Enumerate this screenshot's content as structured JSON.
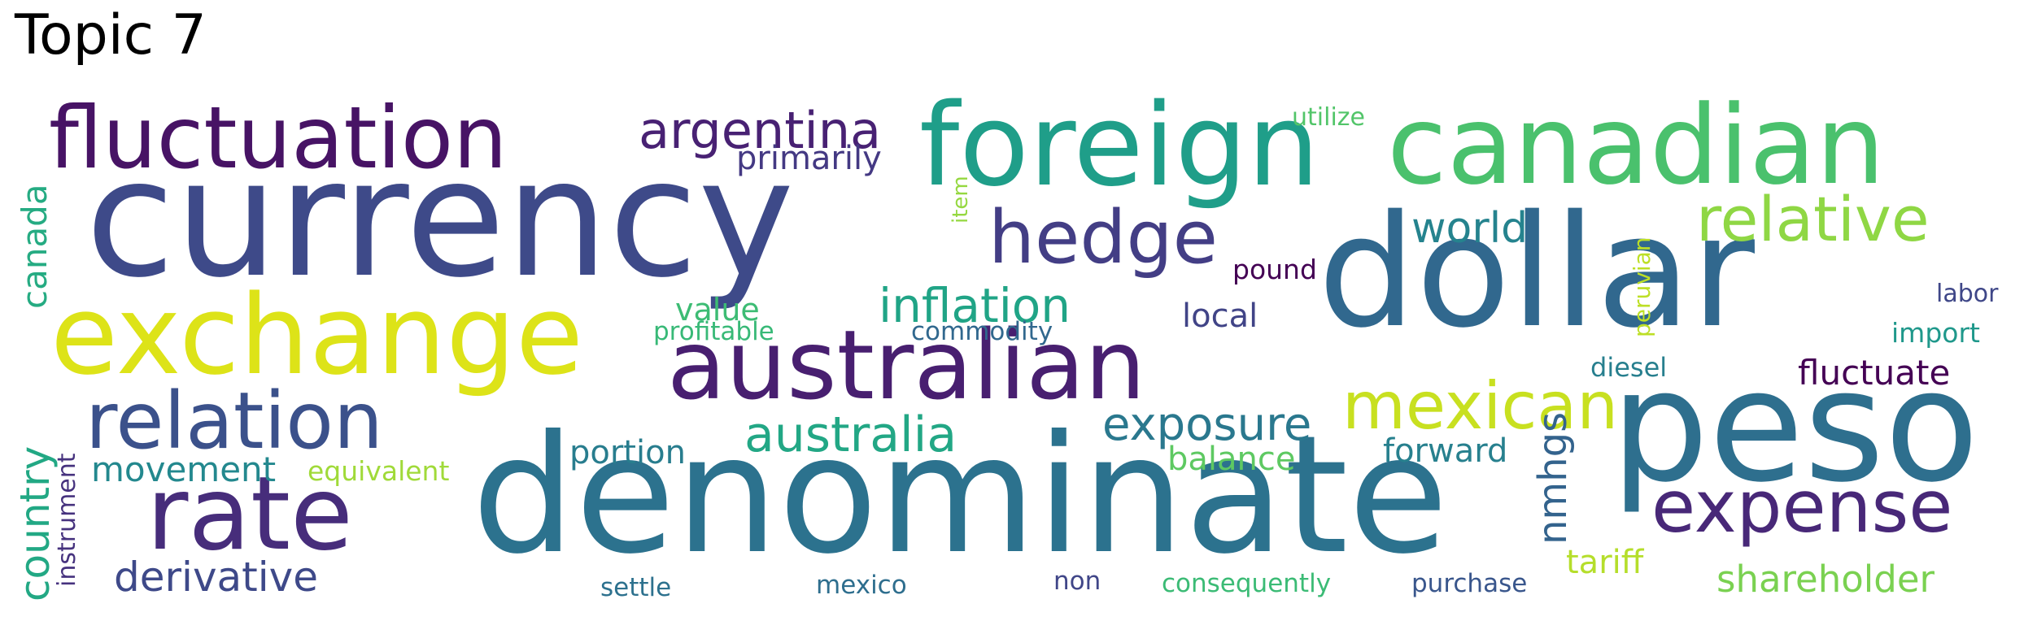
{
  "title": "Topic 7",
  "words": [
    {
      "text": "currency",
      "color": "#3e4a89"
    },
    {
      "text": "denominate",
      "color": "#2c728e"
    },
    {
      "text": "dollar",
      "color": "#31688e"
    },
    {
      "text": "peso",
      "color": "#2e6f8e"
    },
    {
      "text": "foreign",
      "color": "#1f9e89"
    },
    {
      "text": "canadian",
      "color": "#4ac16d"
    },
    {
      "text": "exchange",
      "color": "#dde318"
    },
    {
      "text": "fluctuation",
      "color": "#471365"
    },
    {
      "text": "australian",
      "color": "#481f70"
    },
    {
      "text": "rate",
      "color": "#472d7b"
    },
    {
      "text": "relation",
      "color": "#3b518b"
    },
    {
      "text": "hedge",
      "color": "#433e85"
    },
    {
      "text": "argentina",
      "color": "#482173"
    },
    {
      "text": "relative",
      "color": "#8fd744"
    },
    {
      "text": "expense",
      "color": "#482878"
    },
    {
      "text": "mexican",
      "color": "#c8e020"
    },
    {
      "text": "primarily",
      "color": "#443983"
    },
    {
      "text": "inflation",
      "color": "#20a486"
    },
    {
      "text": "world",
      "color": "#25838e"
    },
    {
      "text": "australia",
      "color": "#22a785"
    },
    {
      "text": "exposure",
      "color": "#2a788e"
    },
    {
      "text": "country",
      "color": "#22a884"
    },
    {
      "text": "canada",
      "color": "#25ab82"
    },
    {
      "text": "movement",
      "color": "#23888e"
    },
    {
      "text": "derivative",
      "color": "#3e4989"
    },
    {
      "text": "shareholder",
      "color": "#7ad151"
    },
    {
      "text": "fluctuate",
      "color": "#440154"
    },
    {
      "text": "nmhgs",
      "color": "#33638d"
    },
    {
      "text": "forward",
      "color": "#27808e"
    },
    {
      "text": "tariff",
      "color": "#b5de2b"
    },
    {
      "text": "balance",
      "color": "#5ec962"
    },
    {
      "text": "local",
      "color": "#414487"
    },
    {
      "text": "value",
      "color": "#3dbc74"
    },
    {
      "text": "portion",
      "color": "#287d8e"
    },
    {
      "text": "equivalent",
      "color": "#a0da39"
    },
    {
      "text": "instrument",
      "color": "#46327e"
    },
    {
      "text": "pound",
      "color": "#440154"
    },
    {
      "text": "import",
      "color": "#1f988b"
    },
    {
      "text": "labor",
      "color": "#3f4788"
    },
    {
      "text": "diesel",
      "color": "#277f8e"
    },
    {
      "text": "peruvian",
      "color": "#bddf26"
    },
    {
      "text": "profitable",
      "color": "#38b977"
    },
    {
      "text": "commodity",
      "color": "#31688e"
    },
    {
      "text": "utilize",
      "color": "#52c569"
    },
    {
      "text": "item",
      "color": "#95d840"
    },
    {
      "text": "settle",
      "color": "#2d718e"
    },
    {
      "text": "mexico",
      "color": "#2e6e8e"
    },
    {
      "text": "non",
      "color": "#404688"
    },
    {
      "text": "consequently",
      "color": "#3bbb75"
    },
    {
      "text": "purchase",
      "color": "#39568c"
    }
  ]
}
